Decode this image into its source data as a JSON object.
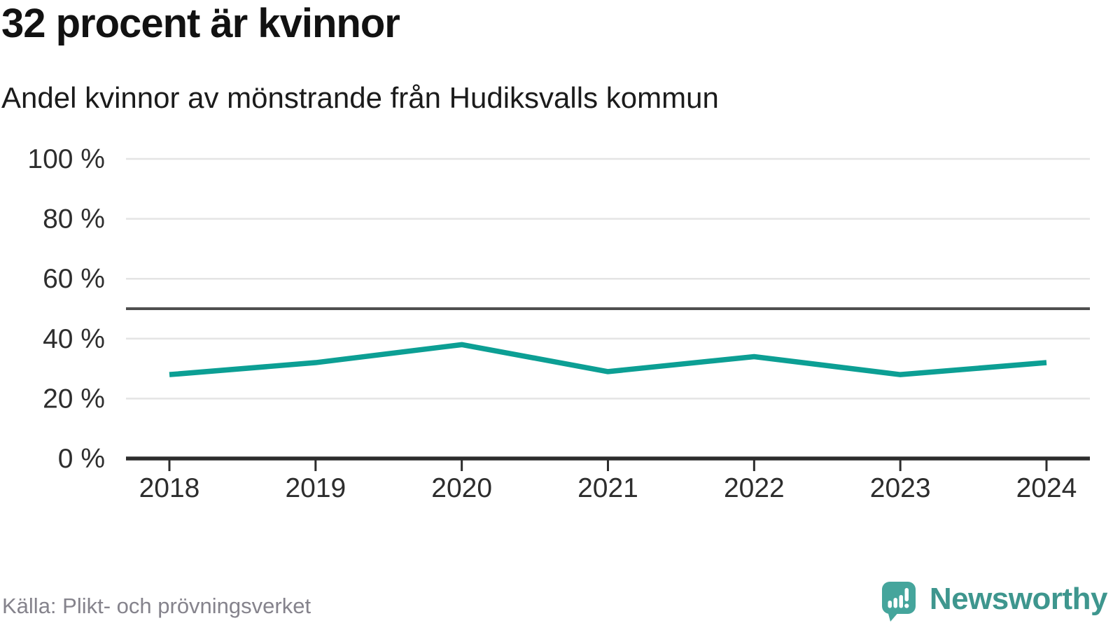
{
  "chart_data": {
    "type": "line",
    "title": "32 procent är kvinnor",
    "subtitle": "Andel kvinnor av mönstrande från Hudiksvalls kommun",
    "x": [
      2018,
      2019,
      2020,
      2021,
      2022,
      2023,
      2024
    ],
    "series": [
      {
        "name": "Andel kvinnor",
        "values": [
          28,
          32,
          38,
          29,
          34,
          28,
          32
        ]
      }
    ],
    "unit": "%",
    "ylim": [
      0,
      100
    ],
    "yticks": [
      0,
      20,
      40,
      60,
      80,
      100
    ],
    "ytick_suffix": " %",
    "reference_line": 50,
    "grid": true,
    "legend": "none",
    "line_color": "#0c9f94",
    "reference_line_color": "#4f4f4f",
    "axis_color": "#2d2d2d",
    "grid_color": "#e4e4e4",
    "tick_label_color": "#2d2d2d"
  },
  "footer": {
    "source": "Källa: Plikt- och prövningsverket",
    "brand": "Newsworthy",
    "brand_color": "#3e968e",
    "brand_icon": "newsworthy-bubble-barchart-icon"
  }
}
